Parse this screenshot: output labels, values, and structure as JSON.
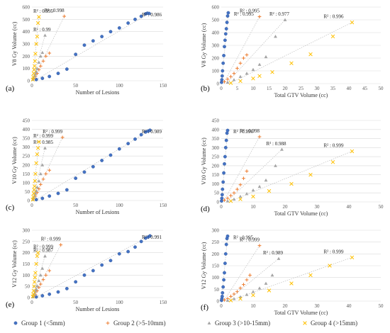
{
  "colors": {
    "g1": "#4472c4",
    "g2": "#ed7d31",
    "g3": "#a5a5a5",
    "g4": "#ffc000",
    "grid": "#d9d9d9",
    "trend": "#bfbfbf"
  },
  "legend": [
    {
      "label": "Group 1 (<5mm)",
      "marker": "circle",
      "color": "#4472c4"
    },
    {
      "label": "Group 2 (>5-10mm)",
      "marker": "plus",
      "color": "#ed7d31"
    },
    {
      "label": "Group 3 (>10-15mm)",
      "marker": "triangle",
      "color": "#a5a5a5"
    },
    {
      "label": "Group 4 (>15mm)",
      "marker": "cross",
      "color": "#ffc000"
    }
  ],
  "chart_data": [
    {
      "id": "a",
      "type": "scatter",
      "panel_label": "(a)",
      "xlabel": "Number of Lesions",
      "ylabel": "V8 Gy Volume (cc)",
      "xlim": [
        0,
        150
      ],
      "ylim": [
        0,
        600
      ],
      "xticks": [
        0,
        50,
        100,
        150
      ],
      "yticks": [
        0,
        100,
        200,
        300,
        400,
        500,
        600
      ],
      "trendlines": true,
      "series": [
        {
          "name": "Group 1 (<5mm)",
          "marker": "circle",
          "r2": "R² : 0.986",
          "x": [
            5,
            12,
            20,
            30,
            40,
            50,
            60,
            70,
            80,
            90,
            100,
            110,
            118,
            125,
            130,
            132,
            134
          ],
          "y": [
            10,
            20,
            35,
            60,
            95,
            215,
            290,
            325,
            360,
            400,
            430,
            470,
            500,
            525,
            545,
            550,
            548
          ]
        },
        {
          "name": "Group 2 (>5-10mm)",
          "marker": "plus",
          "r2": "R² : 0.998",
          "x": [
            2,
            4,
            6,
            8,
            10,
            13,
            16,
            20,
            37
          ],
          "y": [
            15,
            35,
            60,
            90,
            120,
            160,
            200,
            225,
            525
          ]
        },
        {
          "name": "Group 3 (>10-15mm)",
          "marker": "triangle",
          "r2": "R² : 0.99",
          "x": [
            1,
            2,
            3,
            4,
            5,
            6,
            8,
            10,
            12,
            15
          ],
          "y": [
            10,
            25,
            40,
            55,
            75,
            100,
            150,
            200,
            230,
            370
          ]
        },
        {
          "name": "Group 4 (>15mm)",
          "marker": "cross",
          "r2": "R² : 0.995",
          "x": [
            1,
            1.5,
            2,
            2.5,
            3,
            3.5,
            4,
            5,
            6,
            7,
            8
          ],
          "y": [
            10,
            30,
            60,
            90,
            120,
            160,
            220,
            300,
            360,
            470,
            520
          ]
        }
      ]
    },
    {
      "id": "b",
      "type": "scatter",
      "panel_label": "(b)",
      "xlabel": "Total GTV Volume (cc)",
      "ylabel": "V8 Gy Volume (cc)",
      "xlim": [
        0,
        50
      ],
      "ylim": [
        0,
        600
      ],
      "xticks": [
        0,
        5,
        10,
        15,
        20,
        25,
        30,
        35,
        40,
        45,
        50
      ],
      "yticks": [
        0,
        100,
        200,
        300,
        400,
        500,
        600
      ],
      "trendlines": true,
      "series": [
        {
          "name": "Group 1 (<5mm)",
          "marker": "circle",
          "r2": "R² : 0.995",
          "x": [
            0.1,
            0.2,
            0.3,
            0.4,
            0.6,
            0.8,
            1.0,
            1.2,
            1.4,
            1.6,
            1.8,
            2.0,
            2.2
          ],
          "y": [
            10,
            30,
            60,
            100,
            160,
            220,
            290,
            340,
            390,
            430,
            480,
            530,
            555
          ]
        },
        {
          "name": "Group 2 (>5-10mm)",
          "marker": "plus",
          "r2": "R² : 0.995",
          "x": [
            1,
            2,
            3,
            4,
            5,
            6,
            7,
            8,
            12
          ],
          "y": [
            15,
            35,
            55,
            80,
            120,
            160,
            200,
            225,
            525
          ]
        },
        {
          "name": "Group 3 (>10-15mm)",
          "marker": "triangle",
          "r2": "R² : 0.977",
          "x": [
            2,
            4,
            6,
            8,
            10,
            12,
            14,
            17,
            20
          ],
          "y": [
            10,
            30,
            55,
            80,
            110,
            150,
            210,
            370,
            500
          ]
        },
        {
          "name": "Group 4 (>15mm)",
          "marker": "cross",
          "r2": "R² : 0.996",
          "x": [
            3,
            6,
            10,
            12,
            16,
            22,
            28,
            35,
            41
          ],
          "y": [
            5,
            20,
            40,
            60,
            90,
            160,
            230,
            370,
            480
          ]
        }
      ]
    },
    {
      "id": "c",
      "type": "scatter",
      "panel_label": "(c)",
      "xlabel": "Number of Lesions",
      "ylabel": "V10 Gy Volume (cc)",
      "xlim": [
        0,
        150
      ],
      "ylim": [
        0,
        450
      ],
      "xticks": [
        0,
        50,
        100,
        150
      ],
      "yticks": [
        0,
        50,
        100,
        150,
        200,
        250,
        300,
        350,
        400,
        450
      ],
      "trendlines": true,
      "series": [
        {
          "name": "Group 1 (<5mm)",
          "marker": "circle",
          "r2": "R² : 0.989",
          "x": [
            5,
            12,
            20,
            30,
            40,
            50,
            60,
            70,
            80,
            90,
            100,
            110,
            118,
            125,
            130,
            133,
            135
          ],
          "y": [
            5,
            12,
            25,
            40,
            60,
            125,
            160,
            190,
            225,
            255,
            290,
            320,
            345,
            370,
            385,
            390,
            395
          ]
        },
        {
          "name": "Group 2 (>5-10mm)",
          "marker": "plus",
          "r2": "R² : 0.999",
          "x": [
            2,
            4,
            6,
            8,
            10,
            13,
            16,
            20,
            35
          ],
          "y": [
            10,
            25,
            45,
            65,
            90,
            120,
            150,
            170,
            355
          ]
        },
        {
          "name": "Group 3 (>10-15mm)",
          "marker": "triangle",
          "r2": "R² : 0.985",
          "x": [
            1,
            2,
            3,
            4,
            5,
            6,
            8,
            10,
            12,
            15
          ],
          "y": [
            5,
            15,
            25,
            40,
            55,
            75,
            110,
            150,
            200,
            295
          ]
        },
        {
          "name": "Group 4 (>15mm)",
          "marker": "cross",
          "r2": "R² : 0.999",
          "x": [
            1,
            1.5,
            2,
            2.5,
            3,
            3.5,
            4,
            5,
            6,
            7,
            8
          ],
          "y": [
            5,
            20,
            40,
            60,
            80,
            110,
            150,
            210,
            260,
            295,
            330
          ]
        }
      ]
    },
    {
      "id": "d",
      "type": "scatter",
      "panel_label": "(d)",
      "xlabel": "Total GTV Volume (cc)",
      "ylabel": "V10 Gy Volume (cc)",
      "xlim": [
        0,
        50
      ],
      "ylim": [
        0,
        450
      ],
      "xticks": [
        0,
        10,
        20,
        30,
        40,
        50
      ],
      "yticks": [
        0,
        50,
        100,
        150,
        200,
        250,
        300,
        350,
        400,
        450
      ],
      "trendlines": true,
      "series": [
        {
          "name": "Group 1 (<5mm)",
          "marker": "circle",
          "r2": "R² : 0.996",
          "x": [
            0.1,
            0.2,
            0.3,
            0.4,
            0.6,
            0.8,
            1.0,
            1.2,
            1.4,
            1.6,
            1.8,
            2.0
          ],
          "y": [
            5,
            20,
            40,
            70,
            110,
            160,
            210,
            250,
            300,
            340,
            380,
            395
          ]
        },
        {
          "name": "Group 2 (>5-10mm)",
          "marker": "plus",
          "r2": "R² : 0.998",
          "x": [
            1,
            2,
            3,
            4,
            5,
            6,
            7,
            8,
            12
          ],
          "y": [
            10,
            20,
            35,
            50,
            70,
            95,
            130,
            170,
            360
          ]
        },
        {
          "name": "Group 3 (>10-15mm)",
          "marker": "triangle",
          "r2": "R² : 0.988",
          "x": [
            2,
            4,
            6,
            8,
            10,
            12,
            14,
            17,
            19
          ],
          "y": [
            5,
            15,
            30,
            45,
            65,
            85,
            120,
            200,
            290
          ]
        },
        {
          "name": "Group 4 (>15mm)",
          "marker": "cross",
          "r2": "R² : 0.999",
          "x": [
            3,
            6,
            10,
            15,
            22,
            28,
            35,
            41
          ],
          "y": [
            5,
            15,
            30,
            60,
            100,
            150,
            220,
            280
          ]
        }
      ]
    },
    {
      "id": "e",
      "type": "scatter",
      "panel_label": "(e)",
      "xlabel": "Number of Lesions",
      "ylabel": "V12 Gy Volume (cc)",
      "xlim": [
        0,
        150
      ],
      "ylim": [
        0,
        300
      ],
      "xticks": [
        0,
        50,
        100,
        150
      ],
      "yticks": [
        0,
        50,
        100,
        150,
        200,
        250,
        300
      ],
      "trendlines": true,
      "series": [
        {
          "name": "Group 1 (<5mm)",
          "marker": "circle",
          "r2": "R² : 0.991",
          "x": [
            5,
            12,
            20,
            30,
            40,
            50,
            60,
            70,
            80,
            90,
            100,
            110,
            118,
            125,
            130,
            133,
            135
          ],
          "y": [
            3,
            8,
            15,
            25,
            40,
            70,
            100,
            120,
            145,
            165,
            195,
            205,
            225,
            250,
            265,
            270,
            275
          ]
        },
        {
          "name": "Group 2 (>5-10mm)",
          "marker": "plus",
          "r2": "R² : 0.999",
          "x": [
            2,
            4,
            6,
            8,
            10,
            13,
            16,
            20,
            33
          ],
          "y": [
            5,
            15,
            30,
            45,
            60,
            80,
            100,
            120,
            235
          ]
        },
        {
          "name": "Group 3 (>10-15mm)",
          "marker": "triangle",
          "r2": "R² : 0.987",
          "x": [
            1,
            2,
            3,
            4,
            5,
            6,
            8,
            10,
            12,
            15
          ],
          "y": [
            3,
            10,
            18,
            28,
            38,
            52,
            75,
            100,
            130,
            185
          ]
        },
        {
          "name": "Group 4 (>15mm)",
          "marker": "cross",
          "r2": "R² : 0.999",
          "x": [
            1,
            1.5,
            2,
            2.5,
            3,
            3.5,
            4,
            5,
            6,
            7
          ],
          "y": [
            5,
            15,
            30,
            50,
            70,
            90,
            110,
            150,
            185,
            200
          ]
        }
      ]
    },
    {
      "id": "f",
      "type": "scatter",
      "panel_label": "(f)",
      "xlabel": "Total GTV Volume (cc)",
      "ylabel": "V12 Gy Volume (cc)",
      "xlim": [
        0,
        50
      ],
      "ylim": [
        0,
        300
      ],
      "xticks": [
        0,
        10,
        20,
        30,
        40,
        50
      ],
      "yticks": [
        0,
        50,
        100,
        150,
        200,
        250,
        300
      ],
      "trendlines": true,
      "series": [
        {
          "name": "Group 1 (<5mm)",
          "marker": "circle",
          "r2": "R² : 0.995",
          "x": [
            0.1,
            0.2,
            0.3,
            0.4,
            0.6,
            0.8,
            1.0,
            1.2,
            1.4,
            1.6,
            1.8,
            2.0
          ],
          "y": [
            3,
            10,
            20,
            35,
            60,
            90,
            120,
            160,
            200,
            240,
            265,
            275
          ]
        },
        {
          "name": "Group 2 (>5-10mm)",
          "marker": "plus",
          "r2": "R² : 0.999",
          "x": [
            1,
            2,
            3,
            4,
            5,
            6,
            7,
            8,
            9,
            12
          ],
          "y": [
            5,
            10,
            20,
            30,
            40,
            55,
            70,
            90,
            110,
            235
          ]
        },
        {
          "name": "Group 3 (>10-15mm)",
          "marker": "triangle",
          "r2": "R² : 0.989",
          "x": [
            2,
            4,
            6,
            8,
            10,
            12,
            14,
            16,
            18
          ],
          "y": [
            3,
            10,
            18,
            28,
            40,
            55,
            75,
            110,
            180
          ]
        },
        {
          "name": "Group 4 (>15mm)",
          "marker": "cross",
          "r2": "R² : 0.999",
          "x": [
            3,
            6,
            10,
            15,
            22,
            28,
            34,
            41
          ],
          "y": [
            3,
            10,
            25,
            45,
            75,
            110,
            150,
            185
          ]
        }
      ]
    }
  ]
}
